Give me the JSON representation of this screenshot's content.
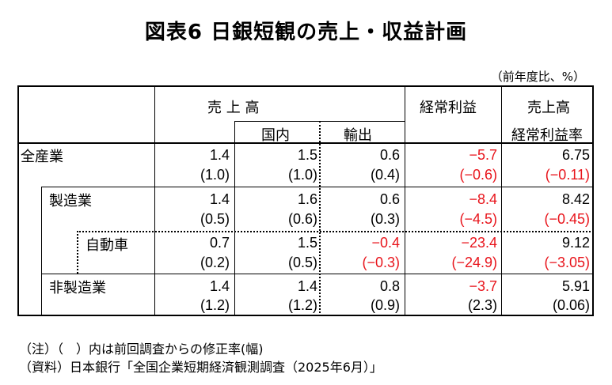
{
  "title": "図表6 日銀短観の売上・収益計画",
  "unit": "（前年度比、%）",
  "header": {
    "sales": "売 上 高",
    "domestic": "国内",
    "export": "輸出",
    "ordinary_profit": "経常利益",
    "margin_line1": "売上高",
    "margin_line2": "経常利益率"
  },
  "rows": [
    {
      "label": "全産業",
      "sales": "1.4",
      "sales_rev": "(1.0)",
      "domestic": "1.5",
      "domestic_rev": "(1.0)",
      "export": "0.6",
      "export_rev": "(0.4)",
      "profit": "−5.7",
      "profit_rev": "(−0.6)",
      "margin": "6.75",
      "margin_rev": "(−0.11)"
    },
    {
      "label": "製造業",
      "sales": "1.4",
      "sales_rev": "(0.5)",
      "domestic": "1.6",
      "domestic_rev": "(0.6)",
      "export": "0.6",
      "export_rev": "(0.3)",
      "profit": "−8.4",
      "profit_rev": "(−4.5)",
      "margin": "8.42",
      "margin_rev": "(−0.45)"
    },
    {
      "label": "自動車",
      "sales": "0.7",
      "sales_rev": "(0.2)",
      "domestic": "1.5",
      "domestic_rev": "(0.5)",
      "export": "−0.4",
      "export_rev": "(−0.3)",
      "profit": "−23.4",
      "profit_rev": "(−24.9)",
      "margin": "9.12",
      "margin_rev": "(−3.05)"
    },
    {
      "label": "非製造業",
      "sales": "1.4",
      "sales_rev": "(1.2)",
      "domestic": "1.4",
      "domestic_rev": "(1.2)",
      "export": "0.8",
      "export_rev": "(0.9)",
      "profit": "−3.7",
      "profit_rev": "(2.3)",
      "margin": "5.91",
      "margin_rev": "(0.06)"
    }
  ],
  "notes": {
    "note1": "（注）（　）内は前回調査からの修正率(幅)",
    "note2": "（資料）日本銀行「全国企業短期経済観測調査（2025年6月）」"
  },
  "colors": {
    "negative": "#e8141b",
    "text": "#000000"
  }
}
